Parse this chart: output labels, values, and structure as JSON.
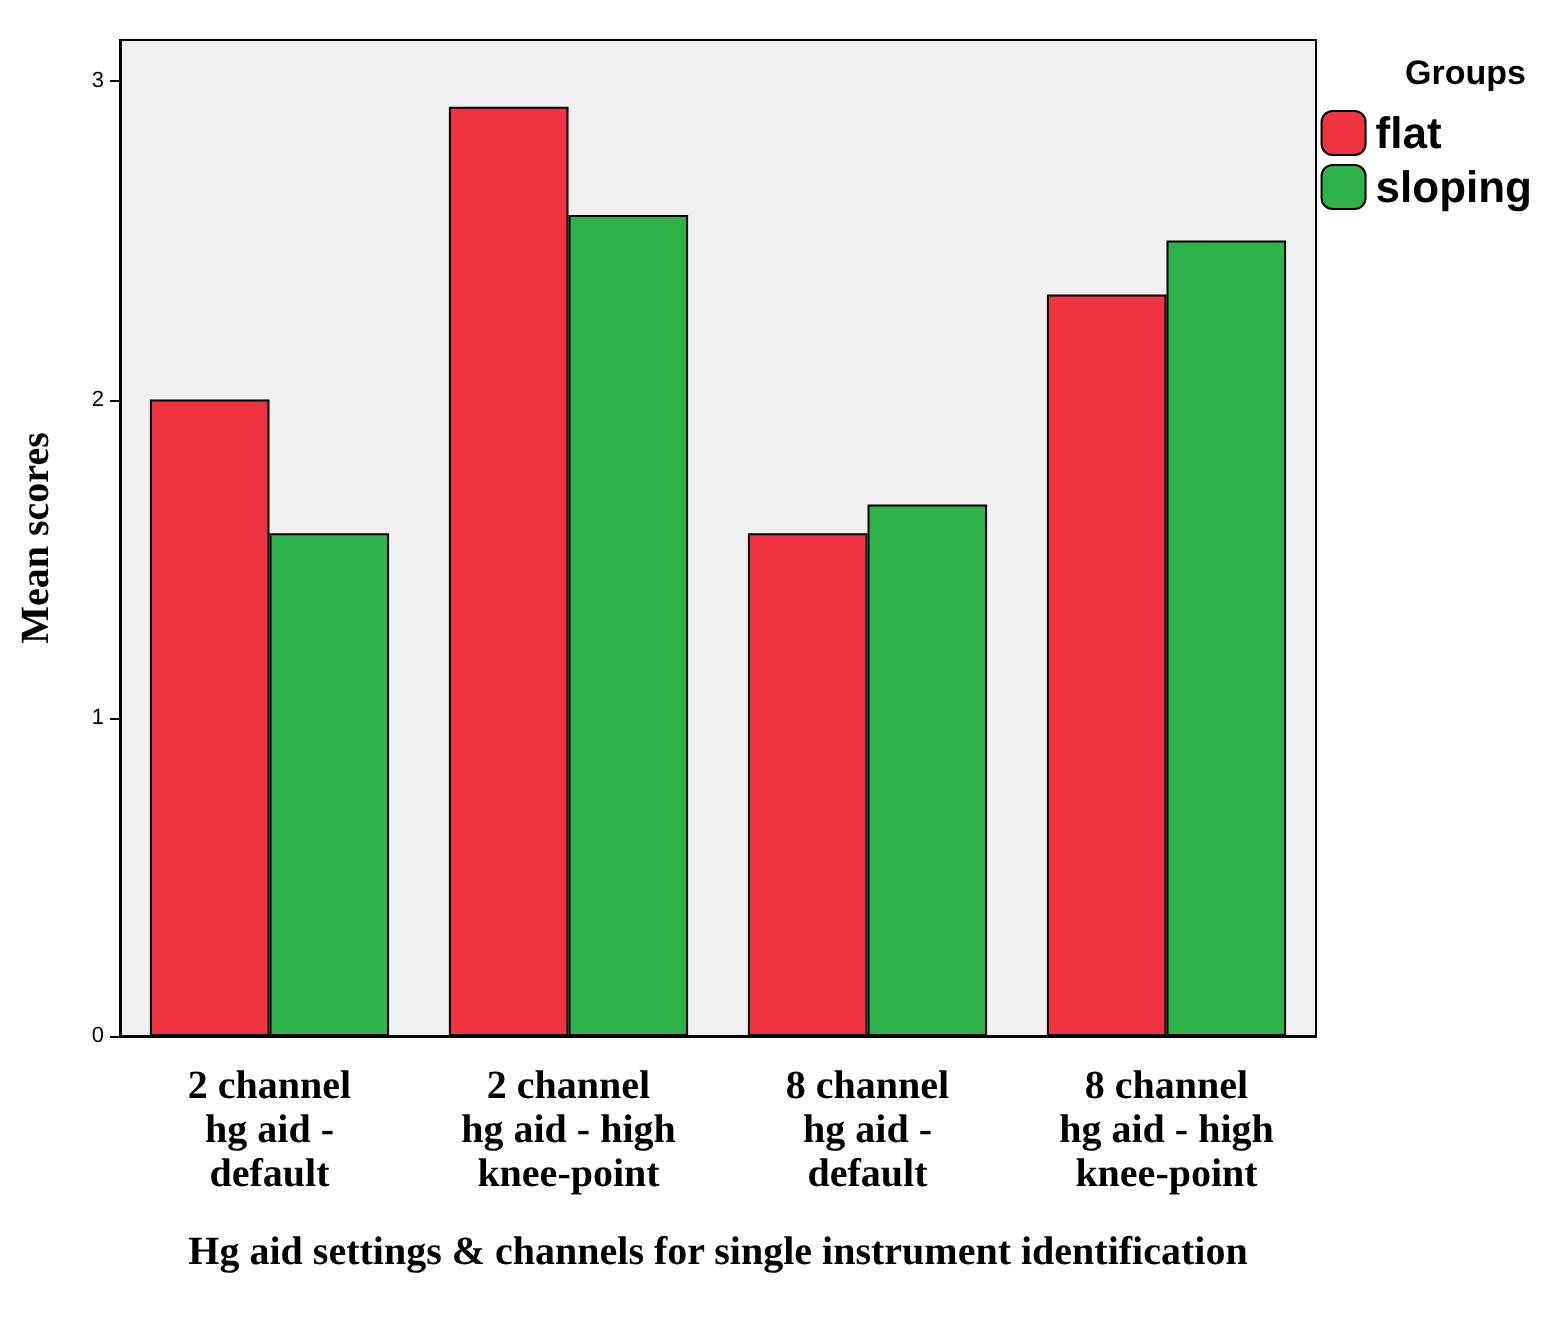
{
  "chart_data": {
    "type": "bar",
    "xlabel": "Hg aid settings & channels for single instrument identification",
    "ylabel": "Mean scores",
    "legend_title": "Groups",
    "categories": [
      "2 channel\nhg aid -\ndefault",
      "2 channel\nhg aid - high\nknee-point",
      "8 channel\nhg aid -\ndefault",
      "8 channel\nhg aid - high\nknee-point"
    ],
    "series": [
      {
        "name": "flat",
        "color": "#ef3340",
        "values": [
          2.0,
          2.92,
          1.58,
          2.33
        ]
      },
      {
        "name": "sloping",
        "color": "#2db34a",
        "values": [
          1.58,
          2.58,
          1.67,
          2.5
        ]
      }
    ],
    "ylim": [
      0,
      3.13
    ],
    "yticks": [
      0,
      1,
      2,
      3
    ],
    "grid": false,
    "legend": "top right"
  }
}
